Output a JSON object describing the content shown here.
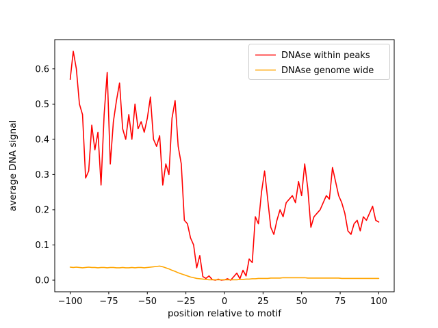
{
  "figure": {
    "background": "#ffffff",
    "axes_background": "#ffffff",
    "spine_color": "#000000",
    "tick_color": "#000000"
  },
  "chart_data": {
    "type": "line",
    "title": "",
    "xlabel": "position relative to motif",
    "ylabel": "average DNA signal",
    "xlim": [
      -110,
      110
    ],
    "ylim": [
      -0.033,
      0.683
    ],
    "xticks": [
      -100,
      -75,
      -50,
      -25,
      0,
      25,
      50,
      75,
      100
    ],
    "yticks": [
      0.0,
      0.1,
      0.2,
      0.3,
      0.4,
      0.5,
      0.6
    ],
    "grid": false,
    "legend": {
      "position": "upper right",
      "border_color": "#cccccc",
      "background": "#ffffff"
    },
    "x": [
      -100,
      -98,
      -96,
      -94,
      -92,
      -90,
      -88,
      -86,
      -84,
      -82,
      -80,
      -78,
      -76,
      -74,
      -72,
      -70,
      -68,
      -66,
      -64,
      -62,
      -60,
      -58,
      -56,
      -54,
      -52,
      -50,
      -48,
      -46,
      -44,
      -42,
      -40,
      -38,
      -36,
      -34,
      -32,
      -30,
      -28,
      -26,
      -24,
      -22,
      -20,
      -18,
      -16,
      -14,
      -12,
      -10,
      -8,
      -6,
      -4,
      -2,
      0,
      2,
      4,
      6,
      8,
      10,
      12,
      14,
      16,
      18,
      20,
      22,
      24,
      26,
      28,
      30,
      32,
      34,
      36,
      38,
      40,
      42,
      44,
      46,
      48,
      50,
      52,
      54,
      56,
      58,
      60,
      62,
      64,
      66,
      68,
      70,
      72,
      74,
      76,
      78,
      80,
      82,
      84,
      86,
      88,
      90,
      92,
      94,
      96,
      98,
      100
    ],
    "series": [
      {
        "name": "DNAse within peaks",
        "color": "#ff0000",
        "values": [
          0.57,
          0.65,
          0.6,
          0.5,
          0.47,
          0.29,
          0.31,
          0.44,
          0.37,
          0.42,
          0.27,
          0.47,
          0.59,
          0.33,
          0.45,
          0.51,
          0.56,
          0.43,
          0.4,
          0.47,
          0.4,
          0.5,
          0.43,
          0.45,
          0.42,
          0.46,
          0.52,
          0.4,
          0.38,
          0.41,
          0.27,
          0.33,
          0.3,
          0.46,
          0.51,
          0.38,
          0.33,
          0.17,
          0.16,
          0.12,
          0.1,
          0.035,
          0.07,
          0.01,
          0.005,
          0.012,
          0.002,
          0.0,
          0.003,
          0.0,
          0.001,
          0.004,
          0.0,
          0.01,
          0.02,
          0.004,
          0.028,
          0.012,
          0.06,
          0.05,
          0.18,
          0.16,
          0.25,
          0.31,
          0.23,
          0.15,
          0.13,
          0.17,
          0.2,
          0.18,
          0.22,
          0.23,
          0.24,
          0.22,
          0.28,
          0.24,
          0.33,
          0.26,
          0.15,
          0.18,
          0.19,
          0.2,
          0.22,
          0.24,
          0.23,
          0.32,
          0.28,
          0.24,
          0.22,
          0.19,
          0.14,
          0.13,
          0.16,
          0.17,
          0.14,
          0.18,
          0.17,
          0.19,
          0.21,
          0.17,
          0.165
        ]
      },
      {
        "name": "DNAse genome wide",
        "color": "#ffa500",
        "values": [
          0.037,
          0.036,
          0.037,
          0.036,
          0.035,
          0.036,
          0.037,
          0.036,
          0.036,
          0.035,
          0.036,
          0.036,
          0.035,
          0.036,
          0.036,
          0.035,
          0.035,
          0.036,
          0.035,
          0.035,
          0.036,
          0.035,
          0.036,
          0.036,
          0.035,
          0.036,
          0.037,
          0.038,
          0.039,
          0.04,
          0.038,
          0.035,
          0.032,
          0.028,
          0.025,
          0.021,
          0.018,
          0.015,
          0.012,
          0.009,
          0.007,
          0.005,
          0.004,
          0.003,
          0.002,
          0.001,
          0.001,
          0.001,
          0.001,
          0.001,
          0.001,
          0.001,
          0.001,
          0.001,
          0.001,
          0.002,
          0.002,
          0.003,
          0.003,
          0.004,
          0.004,
          0.005,
          0.005,
          0.005,
          0.005,
          0.006,
          0.006,
          0.006,
          0.006,
          0.007,
          0.007,
          0.007,
          0.007,
          0.007,
          0.007,
          0.007,
          0.007,
          0.006,
          0.006,
          0.006,
          0.006,
          0.006,
          0.006,
          0.006,
          0.006,
          0.006,
          0.006,
          0.006,
          0.005,
          0.005,
          0.005,
          0.005,
          0.005,
          0.005,
          0.005,
          0.005,
          0.005,
          0.005,
          0.005,
          0.005,
          0.005
        ]
      }
    ]
  }
}
